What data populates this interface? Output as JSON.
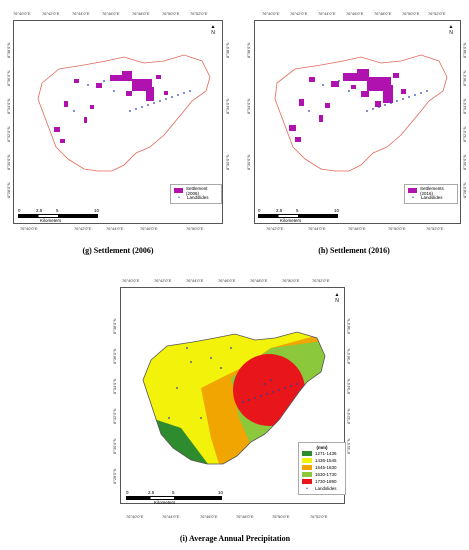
{
  "top_ticks": [
    "76°40'0\"E",
    "76°42'0\"E",
    "76°44'0\"E",
    "76°46'0\"E",
    "76°48'0\"E",
    "76°50'0\"E",
    "76°52'0\"E"
  ],
  "side_ticks": [
    "8°26'0\"N",
    "8°28'0\"N",
    "8°30'0\"N",
    "8°32'0\"N",
    "8°34'0\"N",
    "8°36'0\"N",
    "8°38'0\"N"
  ],
  "north_label": "N",
  "scale": {
    "labels": [
      "0",
      "2.5",
      "5",
      "10"
    ],
    "unit": "Kilometers"
  },
  "panel_g": {
    "caption": "(g) Settlement (2006)",
    "legend": [
      "Settlement (2006)",
      "Landslides"
    ]
  },
  "panel_h": {
    "caption": "(h) Settlement (2016)",
    "legend": [
      "Settlements (2016)",
      "Landslides"
    ]
  },
  "panel_i": {
    "caption": "(i) Average Annual Precipitation",
    "legend_title": "(mm)",
    "legend": [
      "1271-1436",
      "1436-1545",
      "1545-1630",
      "1630-1730",
      "1730-1890",
      "Landslides"
    ],
    "colors": [
      "#2e8b2e",
      "#f2f20a",
      "#f0a500",
      "#8cc83c",
      "#e8161a"
    ]
  }
}
